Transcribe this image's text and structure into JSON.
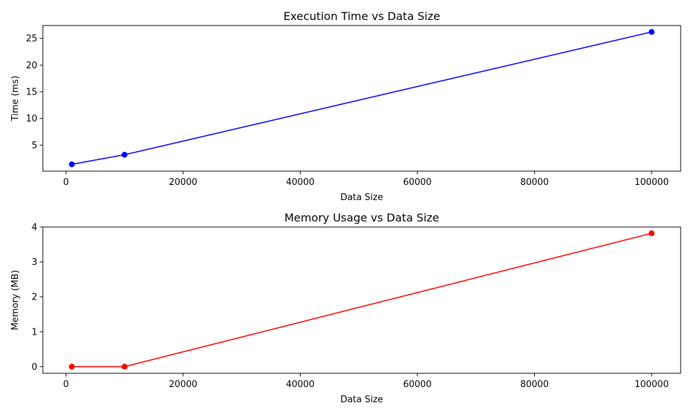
{
  "chart_data": [
    {
      "type": "line",
      "title": "Execution Time vs Data Size",
      "xlabel": "Data Size",
      "ylabel": "Time (ms)",
      "xlim": [
        -3950,
        104950
      ],
      "ylim": [
        0.13,
        27.4
      ],
      "xticks": [
        0,
        20000,
        40000,
        60000,
        80000,
        100000
      ],
      "yticks": [
        5,
        10,
        15,
        20,
        25
      ],
      "grid": false,
      "series": [
        {
          "color": "#0000ff",
          "x": [
            1000,
            10000,
            100000
          ],
          "y": [
            1.4,
            3.2,
            26.2
          ]
        }
      ]
    },
    {
      "type": "line",
      "title": "Memory Usage vs Data Size",
      "xlabel": "Data Size",
      "ylabel": "Memory (MB)",
      "xlim": [
        -3950,
        104950
      ],
      "ylim": [
        -0.19,
        4.0
      ],
      "xticks": [
        0,
        20000,
        40000,
        60000,
        80000,
        100000
      ],
      "yticks": [
        0,
        1,
        2,
        3,
        4
      ],
      "grid": false,
      "series": [
        {
          "color": "#ff0000",
          "x": [
            1000,
            10000,
            100000
          ],
          "y": [
            0.0,
            0.0,
            3.82
          ]
        }
      ]
    }
  ]
}
